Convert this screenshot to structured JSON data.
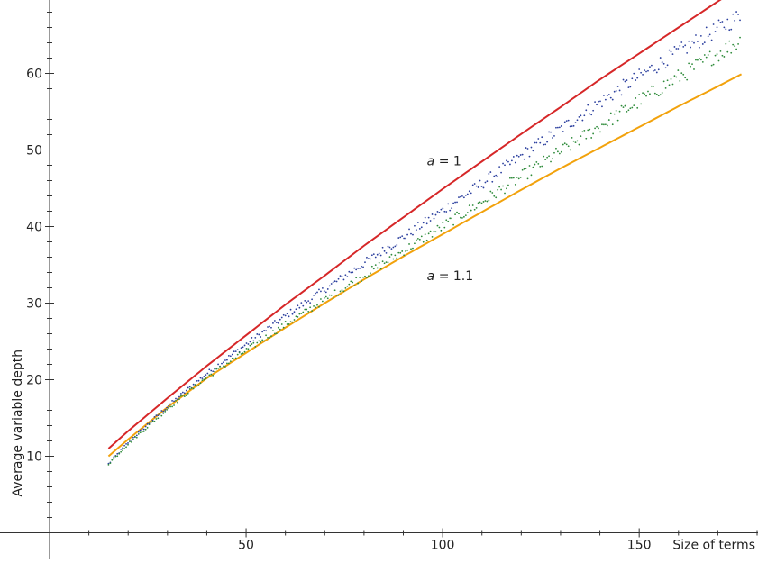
{
  "chart_data": {
    "type": "line",
    "xlabel": "Size of terms",
    "ylabel": "Average variable depth",
    "xlim": [
      0,
      180
    ],
    "ylim": [
      -1,
      69
    ],
    "x_ticks": [
      50,
      100,
      150
    ],
    "y_ticks": [
      10,
      20,
      30,
      40,
      50,
      60
    ],
    "x_tick_labels": [
      "50",
      "100",
      "150"
    ],
    "y_tick_labels": [
      "10",
      "20",
      "30",
      "40",
      "50",
      "60"
    ],
    "x_minor_step": 10,
    "y_minor_step": 2,
    "grid": false,
    "series": [
      {
        "color": "#d62728",
        "style": "solid",
        "x": [
          15,
          20,
          30,
          40,
          50,
          60,
          70,
          80,
          90,
          100,
          110,
          120,
          130,
          140,
          150,
          160,
          170,
          176
        ],
        "y": [
          11.0,
          13.3,
          17.6,
          21.8,
          25.8,
          29.8,
          33.6,
          37.5,
          41.2,
          44.9,
          48.5,
          52.1,
          55.6,
          59.2,
          62.6,
          66.0,
          69.4,
          71.4
        ]
      },
      {
        "color": "#f2a20c",
        "style": "solid",
        "x": [
          15,
          20,
          30,
          40,
          50,
          60,
          70,
          80,
          90,
          100,
          110,
          120,
          130,
          140,
          150,
          160,
          170,
          176
        ],
        "y": [
          10.0,
          12.2,
          16.4,
          20.2,
          23.5,
          26.8,
          30.0,
          33.1,
          36.1,
          39.0,
          41.9,
          44.8,
          47.6,
          50.3,
          53.0,
          55.7,
          58.3,
          59.9
        ]
      },
      {
        "color": "#2b3f9e",
        "style": "dotted",
        "x": [
          15,
          20,
          30,
          40,
          50,
          60,
          70,
          80,
          90,
          100,
          110,
          120,
          130,
          140,
          150,
          160,
          170,
          176
        ],
        "y": [
          9.0,
          11.8,
          16.5,
          20.8,
          24.6,
          28.3,
          31.8,
          35.2,
          38.6,
          42.1,
          45.6,
          49.2,
          52.7,
          56.2,
          59.6,
          62.8,
          65.8,
          67.6
        ]
      },
      {
        "color": "#2e8b3a",
        "style": "dotted",
        "x": [
          15,
          20,
          30,
          40,
          50,
          60,
          70,
          80,
          90,
          100,
          110,
          120,
          130,
          140,
          150,
          160,
          170,
          176
        ],
        "y": [
          9.0,
          11.6,
          16.2,
          20.3,
          23.8,
          27.2,
          30.4,
          33.6,
          36.8,
          40.0,
          43.2,
          46.5,
          49.8,
          53.1,
          56.4,
          59.5,
          62.6,
          64.3
        ]
      }
    ],
    "annotations": [
      {
        "prefix": "a",
        "suffix": " = 1",
        "x": 96,
        "y": 48
      },
      {
        "prefix": "a",
        "suffix": " = 1.1",
        "x": 96,
        "y": 33
      }
    ]
  }
}
